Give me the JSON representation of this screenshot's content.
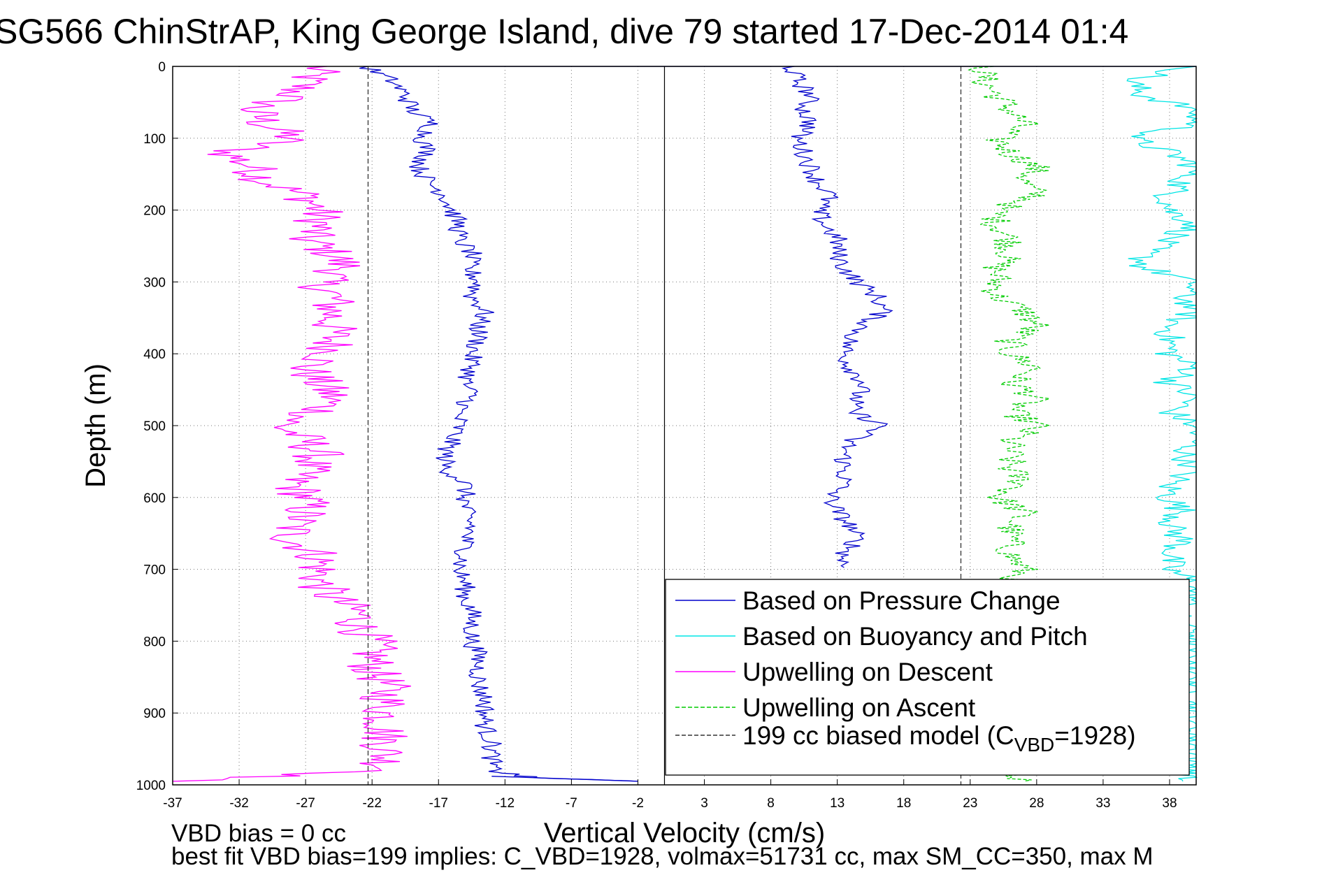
{
  "chart_data": {
    "type": "line",
    "title": "SG566 ChinStrAP, King George Island, dive 79 started 17-Dec-2014 01:4",
    "xlabel": "Vertical Velocity (cm/s)",
    "ylabel": "Depth (m)",
    "xlim": [
      -37,
      40
    ],
    "ylim": [
      1000,
      0
    ],
    "x_ticks": [
      "-37",
      "-32",
      "-27",
      "-22",
      "-17",
      "-12",
      "-7",
      "-2",
      "3",
      "8",
      "13",
      "18",
      "23",
      "28",
      "33",
      "38"
    ],
    "y_ticks": [
      "0",
      "100",
      "200",
      "300",
      "400",
      "500",
      "600",
      "700",
      "800",
      "900",
      "1000"
    ],
    "grid": true,
    "legend_position": "bottom-right",
    "reference_lines": {
      "zero_x": 0,
      "model_bias_x": [
        -22.3,
        22.3
      ]
    },
    "series": [
      {
        "name": "Based on Pressure Change",
        "color": "#0000cc",
        "style": "solid",
        "depth": [
          0,
          20,
          40,
          60,
          80,
          100,
          120,
          140,
          160,
          180,
          200,
          220,
          240,
          260,
          280,
          300,
          320,
          340,
          360,
          380,
          400,
          420,
          440,
          460,
          480,
          500,
          520,
          540,
          560,
          580,
          600,
          620,
          640,
          660,
          680,
          700,
          720,
          740,
          760,
          780,
          800,
          820,
          840,
          860,
          880,
          900,
          920,
          940,
          960,
          980,
          990,
          995
        ],
        "descent_velocity": [
          -22.5,
          -20.5,
          -19.5,
          -19,
          -17.5,
          -18.2,
          -17.8,
          -18.5,
          -17.8,
          -16.5,
          -16,
          -15.5,
          -15.5,
          -14.5,
          -14.8,
          -14,
          -14.5,
          -13.5,
          -14,
          -14,
          -14.5,
          -14.5,
          -15,
          -14.5,
          -15.5,
          -15.5,
          -16,
          -16.5,
          -16.5,
          -15,
          -15,
          -15,
          -14.5,
          -15,
          -15,
          -15.5,
          -15,
          -15,
          -14.5,
          -14.5,
          -14.5,
          -14,
          -14,
          -14,
          -13.5,
          -13.5,
          -13.5,
          -13,
          -13,
          -13,
          -10,
          -2
        ],
        "ascent_velocity": [
          9.5,
          10,
          11,
          10.5,
          11,
          10,
          10.5,
          11,
          11.5,
          12.5,
          11.5,
          12,
          13,
          13,
          13.5,
          14.5,
          16,
          16.5,
          15,
          14,
          13.5,
          14,
          15,
          14.5,
          14,
          16.5,
          14,
          13.5,
          13.5,
          13.5,
          12.5,
          13,
          14,
          14.5,
          13.5,
          13.5,
          null,
          null,
          null,
          null,
          null,
          null,
          null,
          null,
          null,
          null,
          null,
          null,
          null,
          null,
          null,
          null
        ]
      },
      {
        "name": "Based on Buoyancy and Pitch",
        "color": "#00e5e5",
        "style": "solid",
        "depth": [
          0,
          20,
          40,
          60,
          80,
          100,
          120,
          140,
          160,
          180,
          200,
          220,
          240,
          260,
          280,
          300,
          320,
          340,
          360,
          380,
          400,
          420,
          440,
          460,
          480,
          500,
          520,
          540,
          560,
          580,
          600,
          620,
          640,
          660,
          680,
          700,
          720,
          740,
          760,
          780,
          800,
          820,
          840,
          860,
          880,
          900,
          920,
          940,
          960,
          980,
          995
        ],
        "velocity": [
          40,
          35,
          36,
          40,
          40,
          35,
          38,
          40,
          39,
          38,
          38,
          40,
          38,
          36,
          36,
          40,
          39,
          40,
          38,
          38,
          38,
          40,
          38,
          40,
          38,
          40,
          40,
          39,
          40,
          38,
          38,
          39,
          38,
          39,
          38,
          38,
          40,
          40,
          38,
          40,
          40,
          40,
          40,
          40,
          40,
          40,
          40,
          40,
          40,
          40,
          39
        ]
      },
      {
        "name": "Upwelling on Descent",
        "color": "#ff00ff",
        "style": "solid",
        "depth": [
          0,
          20,
          40,
          60,
          80,
          100,
          120,
          140,
          160,
          180,
          200,
          220,
          240,
          260,
          280,
          300,
          320,
          340,
          360,
          380,
          400,
          420,
          440,
          460,
          480,
          500,
          520,
          540,
          560,
          580,
          600,
          620,
          640,
          660,
          680,
          700,
          720,
          740,
          760,
          780,
          800,
          820,
          840,
          860,
          880,
          900,
          920,
          940,
          960,
          980,
          995
        ],
        "velocity": [
          -26,
          -27,
          -28,
          -31,
          -30,
          -28,
          -33,
          -31,
          -30,
          -27,
          -26,
          -26,
          -27,
          -25,
          -24,
          -26,
          -25,
          -25,
          -25,
          -25,
          -25,
          -27,
          -26,
          -25,
          -26,
          -29,
          -27,
          -26,
          -27,
          -28,
          -27,
          -27,
          -28,
          -28,
          -26,
          -26,
          -26,
          -25,
          -23,
          -23,
          -22,
          -22,
          -22,
          -21,
          -21,
          -21,
          -21,
          -21,
          -21,
          -21,
          -37
        ]
      },
      {
        "name": "Upwelling on Ascent",
        "color": "#00cc00",
        "style": "dashed",
        "depth": [
          0,
          20,
          40,
          60,
          80,
          100,
          120,
          140,
          160,
          180,
          200,
          220,
          240,
          260,
          280,
          300,
          320,
          340,
          360,
          380,
          400,
          420,
          440,
          460,
          480,
          500,
          520,
          540,
          560,
          580,
          600,
          620,
          640,
          660,
          680,
          700,
          720,
          740,
          760,
          780,
          800,
          820,
          840,
          860,
          880,
          900,
          920,
          940,
          960,
          980,
          995
        ],
        "velocity": [
          24,
          24,
          25,
          26,
          27,
          25,
          26,
          28,
          27,
          28,
          25,
          25,
          26,
          26,
          25,
          25,
          25,
          27,
          28,
          26,
          26,
          28,
          26,
          28,
          26,
          28,
          26,
          26,
          26,
          27,
          25,
          27,
          26,
          26,
          26,
          27,
          26,
          26,
          26,
          26,
          26,
          26,
          26,
          26,
          26,
          26,
          26,
          26,
          26,
          26,
          27
        ]
      },
      {
        "name": "199 cc biased model (C<sub>VBD</sub>=1928)",
        "color": "#333333",
        "style": "dashed",
        "x_values": [
          -22.3,
          22.3
        ]
      }
    ],
    "legend": [
      {
        "label": "Based on Pressure Change",
        "color": "#0000cc",
        "style": "solid"
      },
      {
        "label": "Based on Buoyancy and Pitch",
        "color": "#00e5e5",
        "style": "solid"
      },
      {
        "label": "Upwelling on Descent",
        "color": "#ff00ff",
        "style": "solid"
      },
      {
        "label": "Upwelling on Ascent",
        "color": "#00cc00",
        "style": "dashed"
      },
      {
        "label": "199 cc biased model (C",
        "sub": "VBD",
        "label_after": "=1928)",
        "color": "#333333",
        "style": "dashed"
      }
    ],
    "annotations": {
      "vbd_bias": "VBD bias = 0 cc",
      "best_fit": "best fit VBD bias=199 implies: C_VBD=1928, volmax=51731 cc, max SM_CC=350, max M"
    }
  }
}
